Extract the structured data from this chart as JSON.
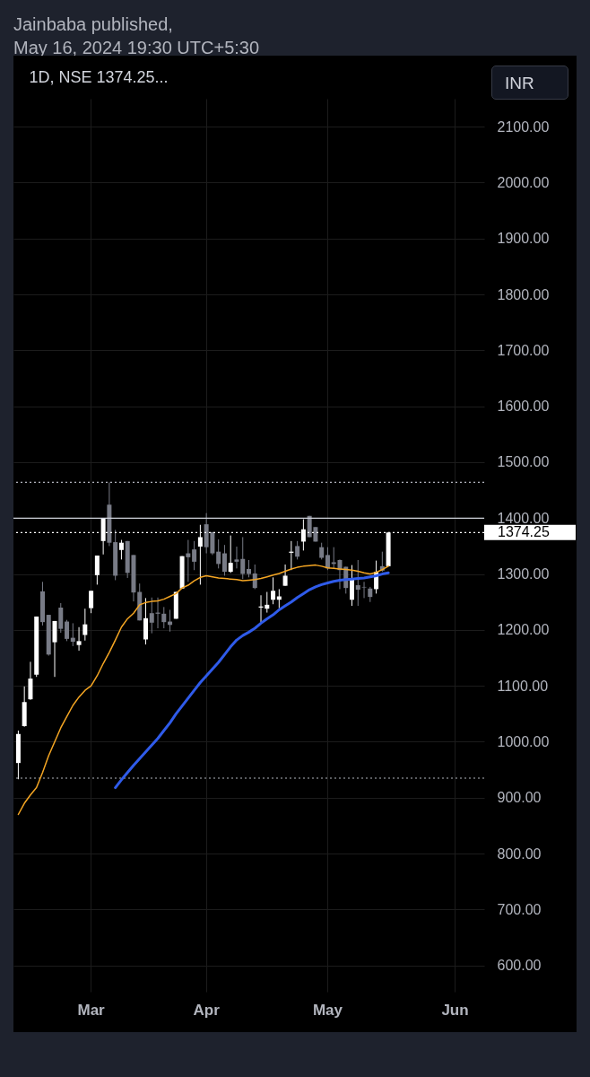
{
  "chart_data": {
    "type": "candlestick",
    "title": "1D, NSE  1374.25...",
    "annotations": [
      "Jainbaba published,",
      "May 16, 2024 19:30 UTC+5:30",
      "INR"
    ],
    "categories": [
      null,
      null,
      null,
      null,
      null,
      null,
      null,
      null,
      null,
      null,
      null,
      null,
      "Mar",
      null,
      null,
      null,
      null,
      null,
      null,
      null,
      null,
      null,
      null,
      null,
      null,
      null,
      null,
      null,
      null,
      null,
      null,
      "Apr",
      null,
      null,
      null,
      null,
      null,
      null,
      null,
      null,
      null,
      null,
      null,
      null,
      null,
      null,
      null,
      null,
      null,
      null,
      null,
      "May",
      null,
      null,
      null,
      null,
      null,
      null,
      null,
      null,
      null,
      null,
      null,
      null,
      null,
      null,
      null,
      null,
      null,
      null,
      null,
      null,
      "Jun",
      null,
      null,
      null,
      null
    ],
    "ohlc": [
      [
        962,
        1020,
        933,
        1014
      ],
      [
        1028,
        1099,
        1027,
        1071
      ],
      [
        1076,
        1143,
        1075,
        1113
      ],
      [
        1120,
        1224,
        1116,
        1224
      ],
      [
        1269,
        1286,
        1208,
        1214
      ],
      [
        1227,
        1227,
        1154,
        1156
      ],
      [
        1178,
        1216,
        1116,
        1216
      ],
      [
        1240,
        1248,
        1195,
        1202
      ],
      [
        1215,
        1218,
        1180,
        1184
      ],
      [
        1186,
        1212,
        1171,
        1179
      ],
      [
        1173,
        1205,
        1163,
        1180
      ],
      [
        1191,
        1238,
        1181,
        1210
      ],
      [
        1239,
        1270,
        1230,
        1270
      ],
      [
        1298,
        1333,
        1281,
        1333
      ],
      [
        1359,
        1400,
        1335,
        1400
      ],
      [
        1424,
        1464,
        1350,
        1356
      ],
      [
        1357,
        1379,
        1289,
        1297
      ],
      [
        1343,
        1361,
        1326,
        1356
      ],
      [
        1359,
        1359,
        1293,
        1302
      ],
      [
        1334,
        1334,
        1251,
        1267
      ],
      [
        1268,
        1283,
        1217,
        1217
      ],
      [
        1183,
        1257,
        1174,
        1221
      ],
      [
        1230,
        1258,
        1194,
        1213
      ],
      [
        1231,
        1258,
        1203,
        1229
      ],
      [
        1229,
        1241,
        1203,
        1214
      ],
      [
        1215,
        1236,
        1197,
        1209
      ],
      [
        1220,
        1268,
        1220,
        1268
      ],
      [
        1274,
        1332,
        1274,
        1332
      ],
      [
        1337,
        1361,
        1286,
        1330
      ],
      [
        1344,
        1359,
        1307,
        1322
      ],
      [
        1349,
        1388,
        1281,
        1366
      ],
      [
        1389,
        1409,
        1337,
        1348
      ],
      [
        1375,
        1375,
        1334,
        1337
      ],
      [
        1340,
        1362,
        1310,
        1318
      ],
      [
        1337,
        1352,
        1297,
        1304
      ],
      [
        1304,
        1369,
        1302,
        1320
      ],
      [
        1326,
        1349,
        1310,
        1322
      ],
      [
        1327,
        1366,
        1291,
        1300
      ],
      [
        1309,
        1325,
        1294,
        1300
      ],
      [
        1301,
        1317,
        1273,
        1275
      ],
      [
        1240,
        1262,
        1214,
        1242
      ],
      [
        1238,
        1268,
        1231,
        1245
      ],
      [
        1254,
        1294,
        1246,
        1270
      ],
      [
        1254,
        1273,
        1239,
        1260
      ],
      [
        1279,
        1317,
        1279,
        1297
      ],
      [
        1338,
        1359,
        1307,
        1340
      ],
      [
        1350,
        1359,
        1326,
        1331
      ],
      [
        1358,
        1398,
        1342,
        1380
      ],
      [
        1404,
        1404,
        1366,
        1366
      ],
      [
        1384,
        1384,
        1358,
        1358
      ],
      [
        1348,
        1356,
        1326,
        1329
      ],
      [
        1334,
        1348,
        1307,
        1310
      ],
      [
        1321,
        1348,
        1310,
        1318
      ],
      [
        1325,
        1326,
        1273,
        1307
      ],
      [
        1313,
        1313,
        1265,
        1275
      ],
      [
        1254,
        1316,
        1243,
        1290
      ],
      [
        1280,
        1325,
        1243,
        1272
      ],
      [
        1277,
        1286,
        1257,
        1276
      ],
      [
        1274,
        1277,
        1250,
        1259
      ],
      [
        1273,
        1324,
        1265,
        1304
      ],
      [
        1314,
        1340,
        1304,
        1306
      ],
      [
        1314,
        1375,
        1314,
        1374.25
      ],
      null,
      null,
      null,
      null,
      null,
      null,
      null,
      null,
      null,
      null,
      null,
      null,
      null,
      null,
      null
    ],
    "colors": [
      "#ffffff",
      "#ffffff",
      "#ffffff",
      "#ffffff",
      "#787b86",
      "#787b86",
      "#ffffff",
      "#787b86",
      "#787b86",
      "#787b86",
      "#ffffff",
      "#ffffff",
      "#ffffff",
      "#ffffff",
      "#ffffff",
      "#787b86",
      "#787b86",
      "#ffffff",
      "#787b86",
      "#787b86",
      "#787b86",
      "#ffffff",
      "#787b86",
      "#787b86",
      "#787b86",
      "#787b86",
      "#ffffff",
      "#ffffff",
      "#787b86",
      "#787b86",
      "#ffffff",
      "#787b86",
      "#787b86",
      "#787b86",
      "#787b86",
      "#ffffff",
      "#787b86",
      "#787b86",
      "#787b86",
      "#787b86",
      "#ffffff",
      "#ffffff",
      "#ffffff",
      "#ffffff",
      "#ffffff",
      "#ffffff",
      "#787b86",
      "#ffffff",
      "#787b86",
      "#787b86",
      "#787b86",
      "#787b86",
      "#787b86",
      "#787b86",
      "#787b86",
      "#ffffff",
      "#787b86",
      "#787b86",
      "#787b86",
      "#ffffff",
      "#787b86",
      "#ffffff",
      null,
      null,
      null,
      null,
      null,
      null,
      null,
      null,
      null,
      null,
      null,
      null,
      null,
      null,
      null
    ],
    "series": [
      {
        "type": "line",
        "color": "#f5a623",
        "values": [
          870,
          890,
          905,
          918,
          945,
          975,
          1000,
          1025,
          1045,
          1065,
          1080,
          1092,
          1100,
          1118,
          1140,
          1160,
          1182,
          1205,
          1220,
          1230,
          1245,
          1249,
          1251,
          1252,
          1255,
          1260,
          1265,
          1275,
          1280,
          1288,
          1294,
          1297,
          1295,
          1293,
          1292,
          1291,
          1290,
          1288,
          1289,
          1290,
          1292,
          1295,
          1298,
          1301,
          1305,
          1309,
          1312,
          1314,
          1315,
          1316,
          1314,
          1311,
          1310,
          1309,
          1308,
          1307,
          1305,
          1302,
          1300,
          1303,
          1308,
          1314,
          null,
          null,
          null,
          null,
          null,
          null,
          null,
          null,
          null,
          null,
          null,
          null,
          null,
          null,
          null
        ]
      },
      {
        "type": "line",
        "color": "#2f5bea",
        "values": [
          null,
          null,
          null,
          null,
          null,
          null,
          null,
          null,
          null,
          null,
          null,
          null,
          null,
          null,
          null,
          null,
          918,
          932,
          945,
          958,
          970,
          982,
          994,
          1006,
          1020,
          1034,
          1050,
          1064,
          1078,
          1092,
          1106,
          1118,
          1130,
          1142,
          1156,
          1170,
          1182,
          1190,
          1196,
          1203,
          1212,
          1220,
          1227,
          1236,
          1243,
          1250,
          1258,
          1265,
          1272,
          1277,
          1281,
          1284,
          1287,
          1289,
          1290,
          1291,
          1292,
          1293,
          1295,
          1297,
          1300,
          1302,
          null,
          null,
          null,
          null,
          null,
          null,
          null,
          null,
          null,
          null,
          null,
          null,
          null,
          null,
          null
        ]
      }
    ],
    "ylim": [
      553,
      2150
    ],
    "yticks": [
      {
        "value": 600,
        "label": "600.00"
      },
      {
        "value": 700,
        "label": "700.00"
      },
      {
        "value": 800,
        "label": "800.00"
      },
      {
        "value": 900,
        "label": "900.00"
      },
      {
        "value": 1000,
        "label": "1000.00"
      },
      {
        "value": 1100,
        "label": "1100.00"
      },
      {
        "value": 1200,
        "label": "1200.00"
      },
      {
        "value": 1300,
        "label": "1300.00"
      },
      {
        "value": 1400,
        "label": "1400.00"
      },
      {
        "value": 1500,
        "label": "1500.00"
      },
      {
        "value": 1600,
        "label": "1600.00"
      },
      {
        "value": 1700,
        "label": "1700.00"
      },
      {
        "value": 1800,
        "label": "1800.00"
      },
      {
        "value": 1900,
        "label": "1900.00"
      },
      {
        "value": 2000,
        "label": "2000.00"
      },
      {
        "value": 2100,
        "label": "2100.00"
      }
    ],
    "grid": true,
    "ref_lines": [
      {
        "axis": "y",
        "value": 1464,
        "color": "#b2b5be",
        "line_style": "dotted"
      },
      {
        "axis": "y",
        "value": 1400,
        "color": "#d1d4dc",
        "line_style": "solid"
      },
      {
        "axis": "y",
        "value": 1374.25,
        "label": "1374.25",
        "color": "#ffffff",
        "line_style": "dotted"
      },
      {
        "axis": "y",
        "value": 935,
        "color": "#b2b5be",
        "line_style": "dotted"
      }
    ]
  }
}
